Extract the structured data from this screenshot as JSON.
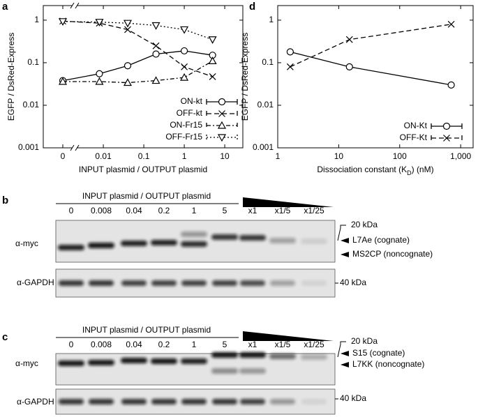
{
  "chart_data": [
    {
      "type": "line",
      "panel": "a",
      "ylabel": "EGFP / DsRed-Express",
      "xlabel": "INPUT plasmid / OUTPUT plasmid",
      "log_x": true,
      "log_y": true,
      "x_break": true,
      "xlim": [
        0.004,
        28
      ],
      "ylim": [
        0.001,
        2.2
      ],
      "xticks": [
        0,
        0.01,
        0.1,
        1,
        10
      ],
      "yticks": [
        0.001,
        0.01,
        0.1,
        1
      ],
      "x": [
        0,
        0.008,
        0.04,
        0.2,
        1,
        5
      ],
      "series": [
        {
          "name": "ON-kt",
          "color": "#000000",
          "marker": "circle",
          "linestyle": "solid",
          "values": [
            0.038,
            0.055,
            0.085,
            0.16,
            0.19,
            0.15
          ]
        },
        {
          "name": "OFF-kt",
          "color": "#000000",
          "marker": "x",
          "linestyle": "dashed",
          "values": [
            0.95,
            0.85,
            0.6,
            0.25,
            0.08,
            0.047
          ]
        },
        {
          "name": "ON-Fr15",
          "color": "#000000",
          "marker": "triangle-up",
          "linestyle": "dashdot",
          "values": [
            0.036,
            0.036,
            0.034,
            0.038,
            0.045,
            0.11
          ]
        },
        {
          "name": "OFF-Fr15",
          "color": "#000000",
          "marker": "triangle-down",
          "linestyle": "dotted",
          "values": [
            0.93,
            0.9,
            0.85,
            0.75,
            0.6,
            0.35
          ]
        }
      ]
    },
    {
      "type": "line",
      "panel": "d",
      "ylabel": "EGFP / DsRed-Express",
      "xlabel": [
        "Dissociation constant (K",
        "D",
        ") (nM)"
      ],
      "log_x": true,
      "log_y": true,
      "xlim": [
        1,
        1600
      ],
      "ylim": [
        0.001,
        2.2
      ],
      "xticks": [
        1,
        10,
        100,
        {
          "value": 1000,
          "label": "1,000"
        }
      ],
      "yticks": [
        0.001,
        0.01,
        0.1,
        1
      ],
      "x": [
        1.6,
        15,
        700
      ],
      "series": [
        {
          "name": "ON-Kt",
          "color": "#000000",
          "marker": "circle",
          "linestyle": "solid",
          "values": [
            0.18,
            0.08,
            0.03
          ]
        },
        {
          "name": "OFF-Kt",
          "color": "#000000",
          "marker": "x",
          "linestyle": "dashed",
          "values": [
            0.08,
            0.35,
            0.8
          ]
        }
      ]
    }
  ],
  "blots": [
    {
      "panel": "b",
      "header": "INPUT plasmid / OUTPUT plasmid",
      "lanes": [
        "0",
        "0.008",
        "0.04",
        "0.2",
        "1",
        "5",
        "x1",
        "x1/5",
        "x1/25"
      ],
      "antibodies": [
        "α-myc",
        "α-GAPDH"
      ],
      "markers": [
        "20 kDa",
        "L7Ae (cognate)",
        "MS2CP (noncognate)",
        "40 kDa"
      ]
    },
    {
      "panel": "c",
      "header": "INPUT plasmid / OUTPUT plasmid",
      "lanes": [
        "0",
        "0.008",
        "0.04",
        "0.2",
        "1",
        "5",
        "x1",
        "x1/5",
        "x1/25"
      ],
      "antibodies": [
        "α-myc",
        "α-GAPDH"
      ],
      "markers": [
        "20 kDa",
        "S15 (cognate)",
        "L7KK (noncognate)",
        "40 kDa"
      ]
    }
  ]
}
